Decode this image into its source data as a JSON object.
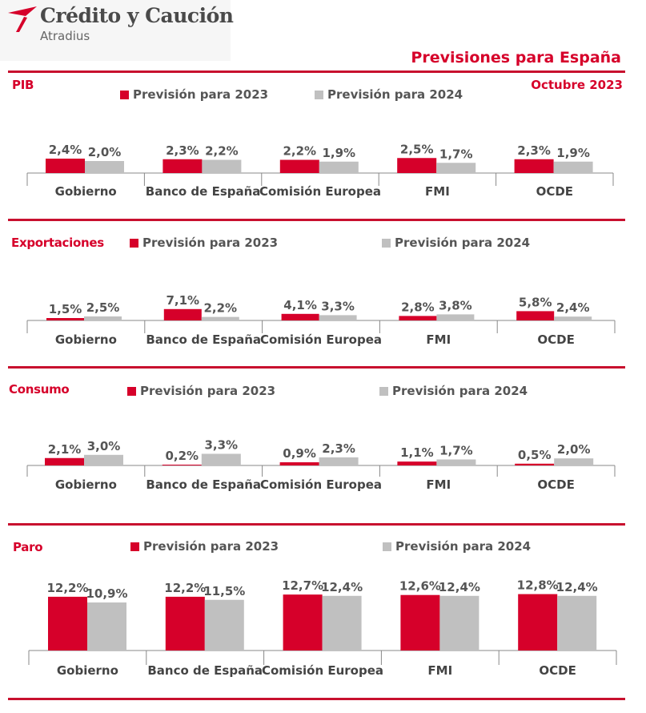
{
  "brand": {
    "name": "Crédito y Caución",
    "sub": "Atradius",
    "accent_color": "#d6002a",
    "secondary_color": "#c0c0c0"
  },
  "header": {
    "title": "Previsiones para España",
    "date": "Octubre  2023"
  },
  "legend": {
    "s2023": "Previsión para 2023",
    "s2024": "Previsión para 2024"
  },
  "chart_data": [
    {
      "type": "bar",
      "title": "PIB",
      "categories": [
        "Gobierno",
        "Banco de España",
        "Comisión Europea",
        "FMI",
        "OCDE"
      ],
      "series": [
        {
          "name": "Previsión para 2023",
          "values": [
            2.4,
            2.3,
            2.2,
            2.5,
            2.3
          ],
          "labels": [
            "2,4%",
            "2,3%",
            "2,2%",
            "2,5%",
            "2,3%"
          ],
          "color": "#d6002a"
        },
        {
          "name": "Previsión para 2024",
          "values": [
            2.0,
            2.2,
            1.9,
            1.7,
            1.9
          ],
          "labels": [
            "2,0%",
            "2,2%",
            "1,9%",
            "1,7%",
            "1,9%"
          ],
          "color": "#c0c0c0"
        }
      ]
    },
    {
      "type": "bar",
      "title": "Exportaciones",
      "categories": [
        "Gobierno",
        "Banco de España",
        "Comisión Europea",
        "FMI",
        "OCDE"
      ],
      "series": [
        {
          "name": "Previsión para 2023",
          "values": [
            1.5,
            7.1,
            4.1,
            2.8,
            5.8
          ],
          "labels": [
            "1,5%",
            "7,1%",
            "4,1%",
            "2,8%",
            "5,8%"
          ],
          "color": "#d6002a"
        },
        {
          "name": "Previsión para 2024",
          "values": [
            2.5,
            2.2,
            3.3,
            3.8,
            2.4
          ],
          "labels": [
            "2,5%",
            "2,2%",
            "3,3%",
            "3,8%",
            "2,4%"
          ],
          "color": "#c0c0c0"
        }
      ]
    },
    {
      "type": "bar",
      "title": "Consumo",
      "categories": [
        "Gobierno",
        "Banco de España",
        "Comisión Europea",
        "FMI",
        "OCDE"
      ],
      "series": [
        {
          "name": "Previsión para 2023",
          "values": [
            2.1,
            0.2,
            0.9,
            1.1,
            0.5
          ],
          "labels": [
            "2,1%",
            "0,2%",
            "0,9%",
            "1,1%",
            "0,5%"
          ],
          "color": "#d6002a"
        },
        {
          "name": "Previsión para 2024",
          "values": [
            3.0,
            3.3,
            2.3,
            1.7,
            2.0
          ],
          "labels": [
            "3,0%",
            "3,3%",
            "2,3%",
            "1,7%",
            "2,0%"
          ],
          "color": "#c0c0c0"
        }
      ]
    },
    {
      "type": "bar",
      "title": "Paro",
      "categories": [
        "Gobierno",
        "Banco de España",
        "Comisión Europea",
        "FMI",
        "OCDE"
      ],
      "series": [
        {
          "name": "Previsión para 2023",
          "values": [
            12.2,
            12.2,
            12.7,
            12.6,
            12.8
          ],
          "labels": [
            "12,2%",
            "12,2%",
            "12,7%",
            "12,6%",
            "12,8%"
          ],
          "color": "#d6002a"
        },
        {
          "name": "Previsión para 2024",
          "values": [
            10.9,
            11.5,
            12.4,
            12.4,
            12.4
          ],
          "labels": [
            "10,9%",
            "11,5%",
            "12,4%",
            "12,4%",
            "12,4%"
          ],
          "color": "#c0c0c0"
        }
      ]
    }
  ]
}
